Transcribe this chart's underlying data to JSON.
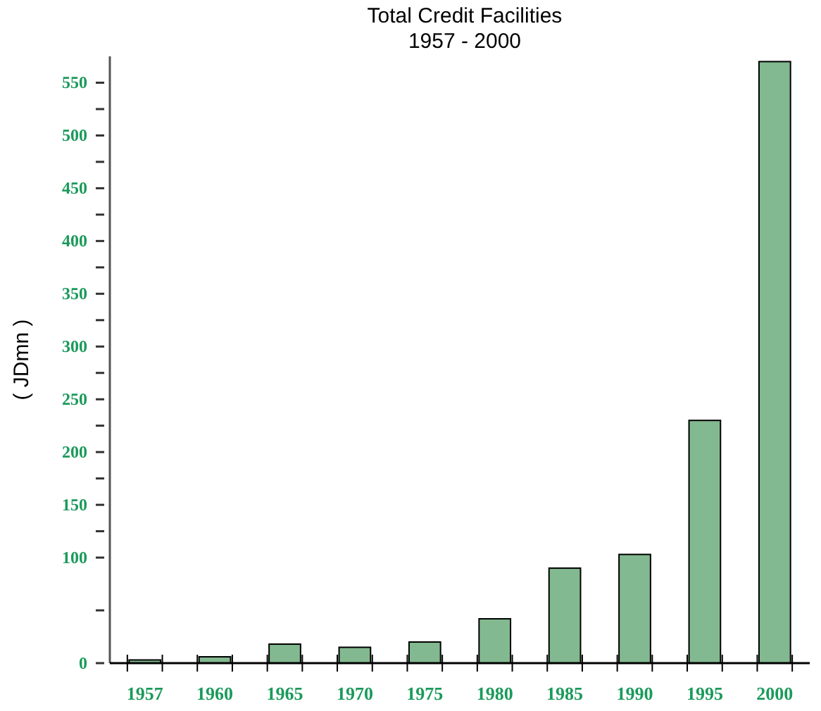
{
  "chart_data": {
    "type": "bar",
    "title": "Total Credit Facilities",
    "subtitle": "1957 - 2000",
    "ylabel": "( JDmn )",
    "categories": [
      "1957",
      "1960",
      "1965",
      "1970",
      "1975",
      "1980",
      "1985",
      "1990",
      "1995",
      "2000"
    ],
    "values": [
      3,
      6,
      18,
      15,
      20,
      42,
      90,
      103,
      230,
      570
    ],
    "color": "#83b990",
    "ylim": [
      0,
      575
    ],
    "yticks": [
      0,
      {
        "value": 50,
        "label": null
      },
      100,
      {
        "value": 125,
        "label": null
      },
      150,
      {
        "value": 175,
        "label": null
      },
      200,
      {
        "value": 225,
        "label": null
      },
      250,
      {
        "value": 275,
        "label": null
      },
      300,
      {
        "value": 325,
        "label": null
      },
      350,
      {
        "value": 375,
        "label": null
      },
      400,
      {
        "value": 425,
        "label": null
      },
      450,
      {
        "value": 475,
        "label": null
      },
      500,
      {
        "value": 525,
        "label": null
      },
      550
    ],
    "grid": false
  }
}
